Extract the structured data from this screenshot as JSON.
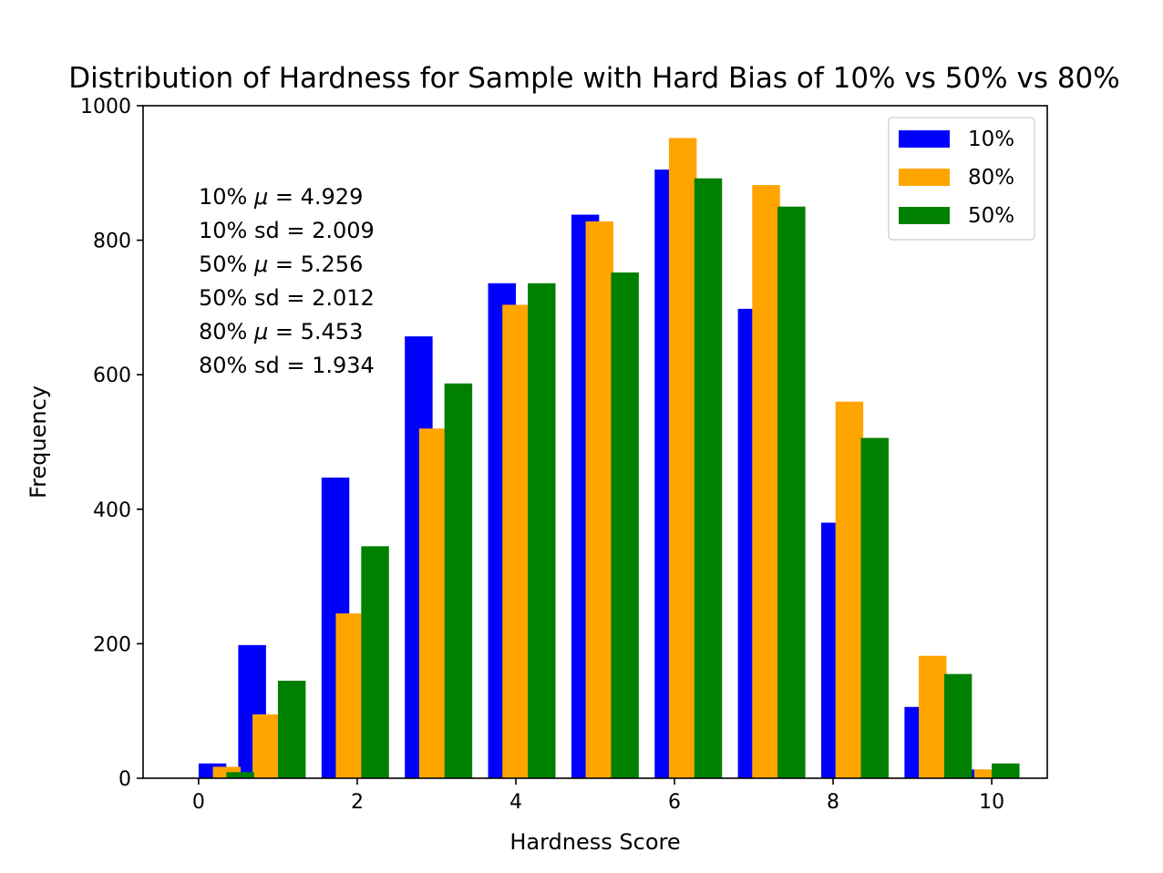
{
  "chart_data": {
    "type": "bar",
    "title": "Distribution of Hardness for Sample with Hard Bias of 10% vs 50% vs 80%",
    "xlabel": "Hardness Score",
    "ylabel": "Frequency",
    "xlim": [
      -0.7,
      10.7
    ],
    "ylim": [
      0,
      1000
    ],
    "xticks": [
      "0",
      "2",
      "4",
      "6",
      "8",
      "10"
    ],
    "yticks": [
      "0",
      "200",
      "400",
      "600",
      "800",
      "1000"
    ],
    "grid": false,
    "legend_position": "top-right",
    "series": [
      {
        "name": "10%",
        "color": "#0000ff",
        "bins": [
          {
            "x": 0.0,
            "value": 22
          },
          {
            "x": 0.5,
            "value": 198
          },
          {
            "x": 1.55,
            "value": 447
          },
          {
            "x": 2.6,
            "value": 657
          },
          {
            "x": 3.65,
            "value": 736
          },
          {
            "x": 4.7,
            "value": 838
          },
          {
            "x": 5.75,
            "value": 905
          },
          {
            "x": 6.8,
            "value": 698
          },
          {
            "x": 7.85,
            "value": 380
          },
          {
            "x": 8.9,
            "value": 106
          },
          {
            "x": 9.6,
            "value": 13
          }
        ]
      },
      {
        "name": "80%",
        "color": "#ffa500",
        "bins": [
          {
            "x": 0.18,
            "value": 17
          },
          {
            "x": 0.68,
            "value": 95
          },
          {
            "x": 1.73,
            "value": 245
          },
          {
            "x": 2.78,
            "value": 520
          },
          {
            "x": 3.83,
            "value": 704
          },
          {
            "x": 4.88,
            "value": 828
          },
          {
            "x": 5.93,
            "value": 952
          },
          {
            "x": 6.98,
            "value": 882
          },
          {
            "x": 8.03,
            "value": 560
          },
          {
            "x": 9.08,
            "value": 182
          },
          {
            "x": 9.78,
            "value": 13
          }
        ]
      },
      {
        "name": "50%",
        "color": "#008000",
        "bins": [
          {
            "x": 0.35,
            "value": 9
          },
          {
            "x": 1.0,
            "value": 145
          },
          {
            "x": 2.05,
            "value": 345
          },
          {
            "x": 3.1,
            "value": 587
          },
          {
            "x": 4.15,
            "value": 736
          },
          {
            "x": 5.2,
            "value": 752
          },
          {
            "x": 6.25,
            "value": 892
          },
          {
            "x": 7.3,
            "value": 850
          },
          {
            "x": 8.35,
            "value": 506
          },
          {
            "x": 9.4,
            "value": 155
          },
          {
            "x": 10.0,
            "value": 22
          }
        ]
      }
    ],
    "annotations": [
      "10% $\\mu=$ 4.929",
      "10% sd = 2.009",
      "50% $\\mu=$ 5.256",
      "50% sd = 2.012",
      "80% $\\mu=$ 5.453",
      "80% sd = 1.934"
    ]
  }
}
